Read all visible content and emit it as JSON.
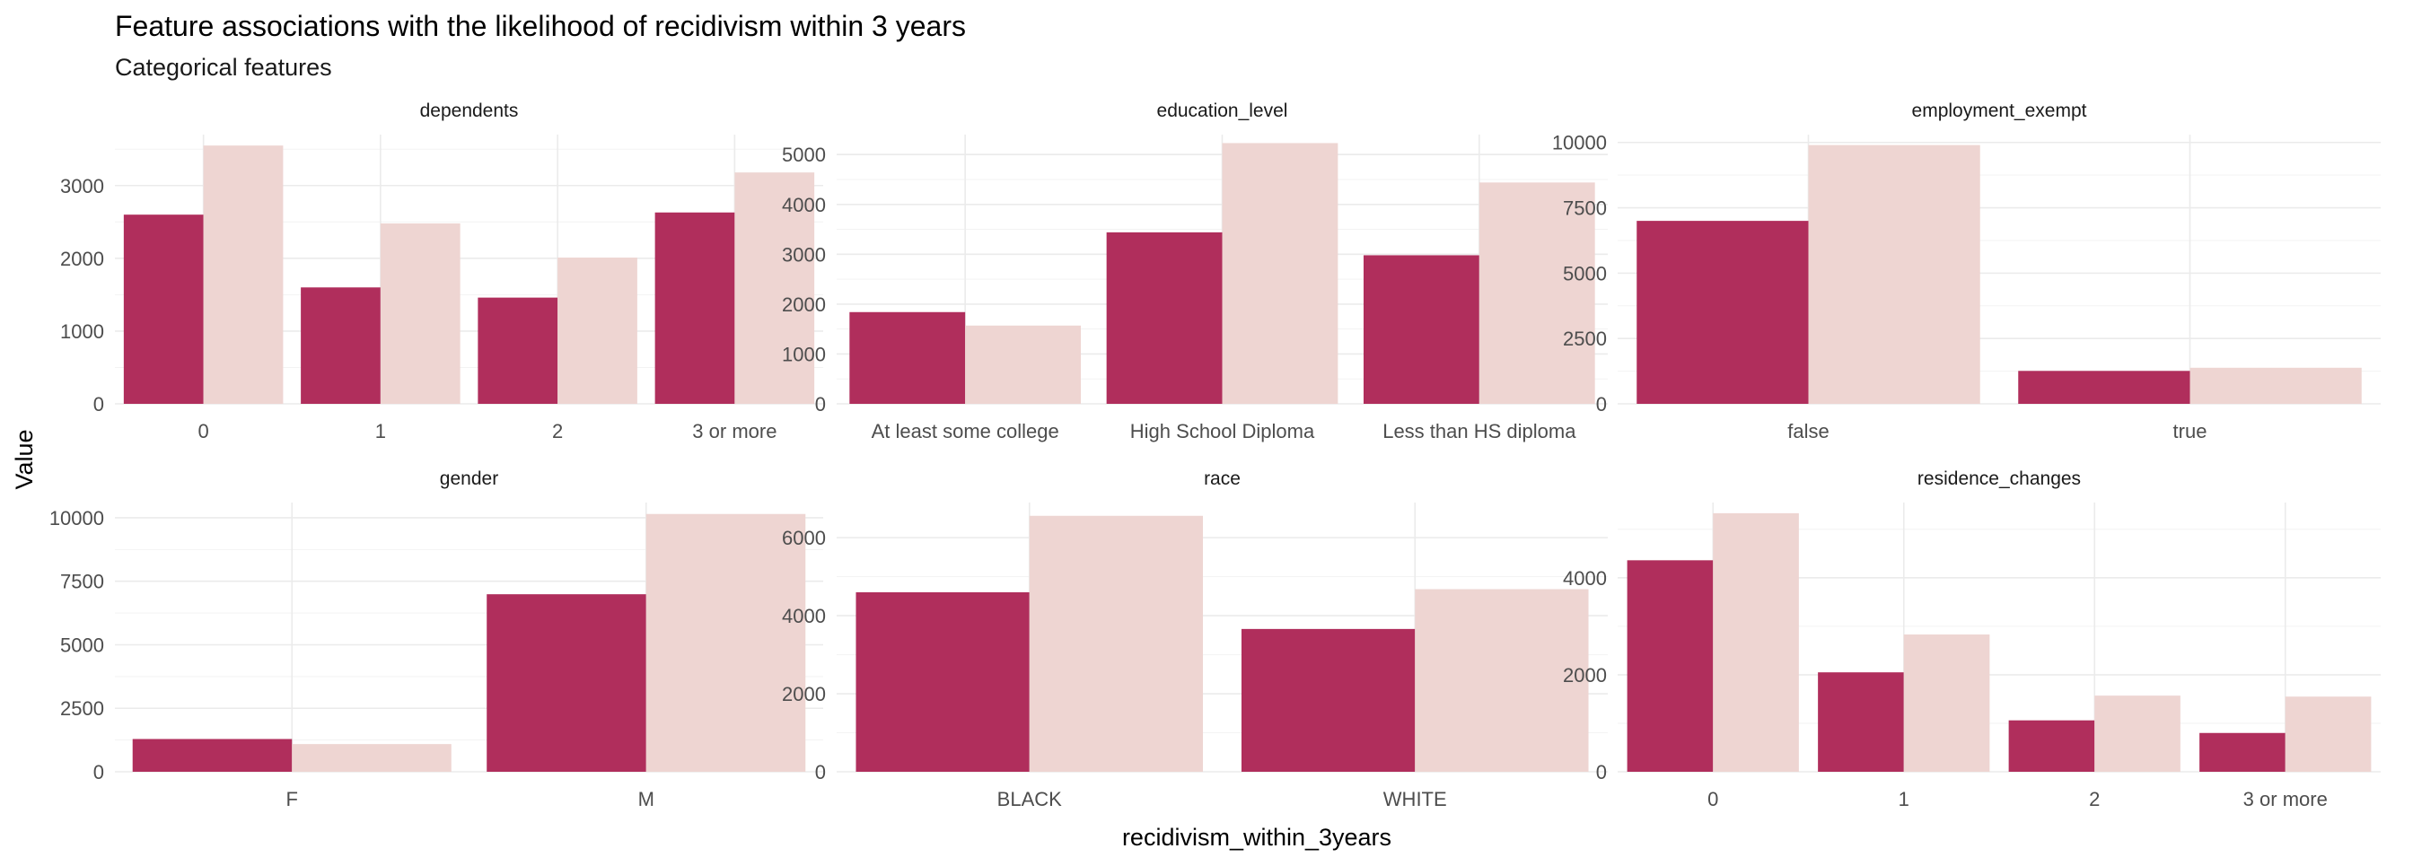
{
  "title": "Feature associations with the likelihood of recidivism within 3 years",
  "subtitle": "Categorical features",
  "xlabel": "recidivism_within_3years",
  "ylabel": "Value",
  "colors": {
    "series_a": "#b02e5c",
    "series_b": "#eed5d2"
  },
  "chart_data": [
    {
      "type": "bar",
      "facet": "dependents",
      "categories": [
        "0",
        "1",
        "2",
        "3 or more"
      ],
      "series": [
        {
          "values": [
            2600,
            1600,
            1460,
            2630
          ]
        },
        {
          "values": [
            3550,
            2480,
            2010,
            3180
          ]
        }
      ],
      "ylim": [
        0,
        3700
      ],
      "yticks": [
        0,
        1000,
        2000,
        3000
      ],
      "ytick_labels": [
        "0",
        "1000",
        "2000",
        "3000"
      ]
    },
    {
      "type": "bar",
      "facet": "education_level",
      "categories": [
        "At least some college",
        "High School Diploma",
        "Less than HS diploma"
      ],
      "series": [
        {
          "values": [
            1840,
            3440,
            2980
          ]
        },
        {
          "values": [
            1570,
            5230,
            4440
          ]
        }
      ],
      "ylim": [
        0,
        5400
      ],
      "yticks": [
        0,
        1000,
        2000,
        3000,
        4000,
        5000
      ],
      "ytick_labels": [
        "0",
        "1000",
        "2000",
        "3000",
        "4000",
        "5000"
      ]
    },
    {
      "type": "bar",
      "facet": "employment_exempt",
      "categories": [
        "false",
        "true"
      ],
      "series": [
        {
          "values": [
            7000,
            1260
          ]
        },
        {
          "values": [
            9900,
            1380
          ]
        }
      ],
      "ylim": [
        0,
        10300
      ],
      "yticks": [
        0,
        2500,
        5000,
        7500,
        10000
      ],
      "ytick_labels": [
        "0",
        "2500",
        "5000",
        "7500",
        "10000"
      ]
    },
    {
      "type": "bar",
      "facet": "gender",
      "categories": [
        "F",
        "M"
      ],
      "series": [
        {
          "values": [
            1290,
            6990
          ]
        },
        {
          "values": [
            1090,
            10150
          ]
        }
      ],
      "ylim": [
        0,
        10600
      ],
      "yticks": [
        0,
        2500,
        5000,
        7500,
        10000
      ],
      "ytick_labels": [
        "0",
        "2500",
        "5000",
        "7500",
        "10000"
      ]
    },
    {
      "type": "bar",
      "facet": "race",
      "categories": [
        "BLACK",
        "WHITE"
      ],
      "series": [
        {
          "values": [
            4600,
            3660
          ]
        },
        {
          "values": [
            6560,
            4680
          ]
        }
      ],
      "ylim": [
        0,
        6900
      ],
      "yticks": [
        0,
        2000,
        4000,
        6000
      ],
      "ytick_labels": [
        "0",
        "2000",
        "4000",
        "6000"
      ]
    },
    {
      "type": "bar",
      "facet": "residence_changes",
      "categories": [
        "0",
        "1",
        "2",
        "3 or more"
      ],
      "series": [
        {
          "values": [
            4360,
            2050,
            1060,
            800
          ]
        },
        {
          "values": [
            5330,
            2830,
            1570,
            1550
          ]
        }
      ],
      "ylim": [
        0,
        5550
      ],
      "yticks": [
        0,
        2000,
        4000
      ],
      "ytick_labels": [
        "0",
        "2000",
        "4000"
      ]
    }
  ]
}
